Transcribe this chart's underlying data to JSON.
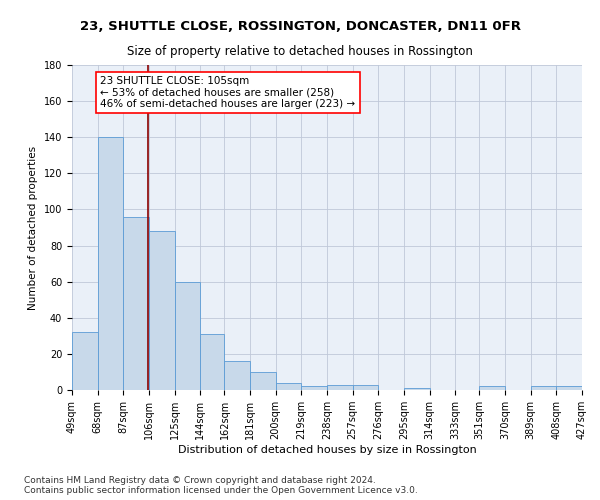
{
  "title": "23, SHUTTLE CLOSE, ROSSINGTON, DONCASTER, DN11 0FR",
  "subtitle": "Size of property relative to detached houses in Rossington",
  "xlabel": "Distribution of detached houses by size in Rossington",
  "ylabel": "Number of detached properties",
  "footer_line1": "Contains HM Land Registry data © Crown copyright and database right 2024.",
  "footer_line2": "Contains public sector information licensed under the Open Government Licence v3.0.",
  "bins": [
    49,
    68,
    87,
    106,
    125,
    144,
    162,
    181,
    200,
    219,
    238,
    257,
    276,
    295,
    314,
    333,
    351,
    370,
    389,
    408,
    427
  ],
  "bar_heights": [
    32,
    140,
    96,
    88,
    60,
    31,
    16,
    10,
    4,
    2,
    3,
    3,
    0,
    1,
    0,
    0,
    2,
    0,
    2,
    2
  ],
  "bar_color": "#c8d9ea",
  "bar_edge_color": "#5b9bd5",
  "grid_color": "#c0c8d8",
  "background_color": "#eaf0f8",
  "red_line_x": 105,
  "annotation_line1": "23 SHUTTLE CLOSE: 105sqm",
  "annotation_line2": "← 53% of detached houses are smaller (258)",
  "annotation_line3": "46% of semi-detached houses are larger (223) →",
  "ylim": [
    0,
    180
  ],
  "title_fontsize": 9.5,
  "subtitle_fontsize": 8.5,
  "tick_fontsize": 7,
  "annot_fontsize": 7.5,
  "xlabel_fontsize": 8,
  "ylabel_fontsize": 7.5,
  "footer_fontsize": 6.5
}
